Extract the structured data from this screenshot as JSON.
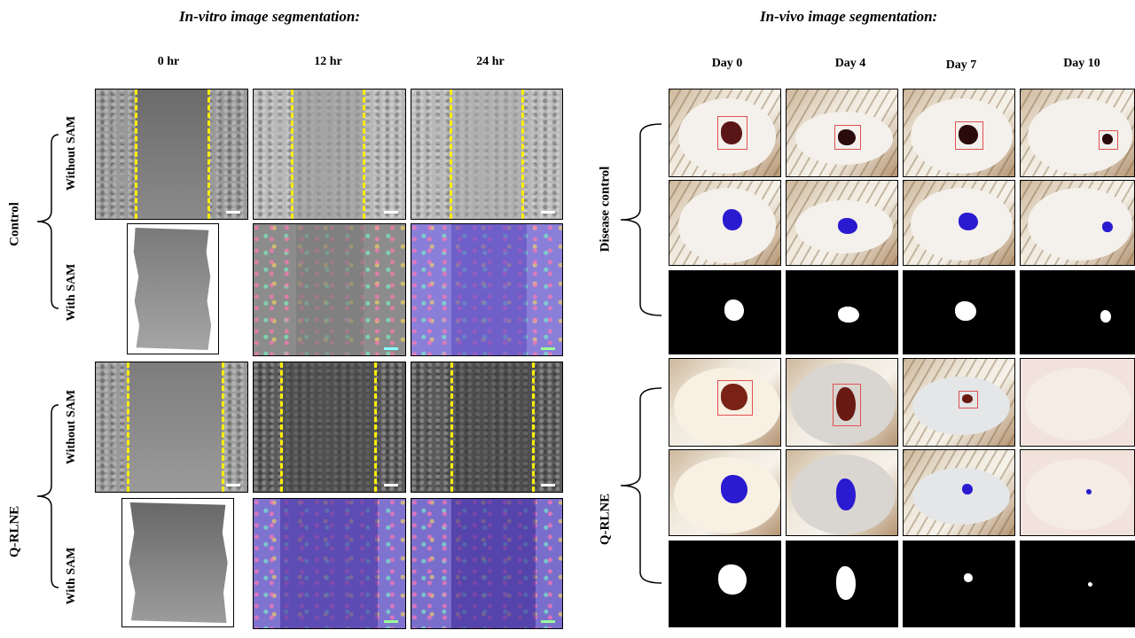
{
  "in_vitro": {
    "title": "In-vitro image segmentation:",
    "time_points": [
      "0 hr",
      "12 hr",
      "24 hr"
    ],
    "groups": [
      "Control",
      "Q-RLNE"
    ],
    "row_labels": [
      "Without SAM",
      "With SAM"
    ]
  },
  "in_vivo": {
    "title": "In-vivo image segmentation:",
    "days": [
      "Day 0",
      "Day 4",
      "Day 7",
      "Day 10"
    ],
    "groups": [
      "Disease control",
      "Q-RLNE"
    ]
  },
  "colors": {
    "dash": "#ffee00",
    "segmentation_overlay": "#6b5bd6",
    "mask_blue": "#2a1ad0",
    "bbox": "#e05050"
  }
}
